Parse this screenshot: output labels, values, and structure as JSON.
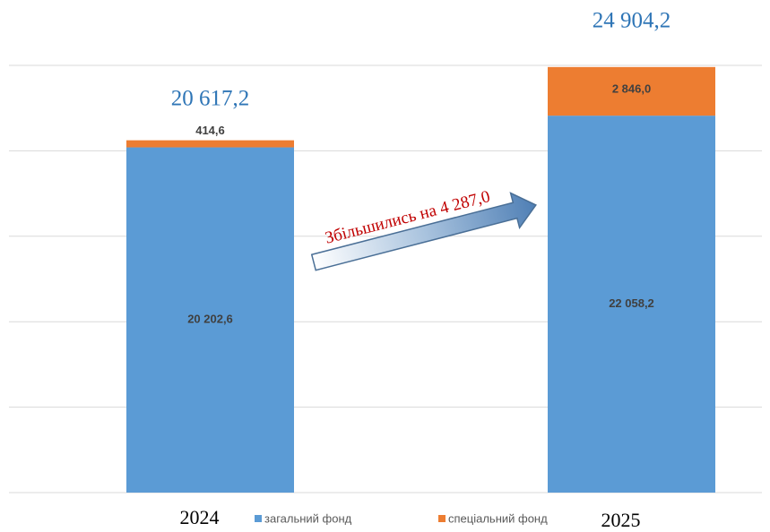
{
  "chart_data": {
    "type": "stacked_bar",
    "categories": [
      "2024",
      "2025"
    ],
    "series": [
      {
        "name": "загальний фонд",
        "color": "#5b9bd5",
        "values": [
          20202.6,
          22058.2
        ],
        "value_labels": [
          "20 202,6",
          "22 058,2"
        ]
      },
      {
        "name": "спеціальний фонд",
        "color": "#ed7d31",
        "values": [
          414.6,
          2846.0
        ],
        "value_labels": [
          "414,6",
          "2 846,0"
        ]
      }
    ],
    "totals": [
      20617.2,
      24904.2
    ],
    "total_labels": [
      "20 617,2",
      "24 904,2"
    ],
    "annotation": "Збільшились на 4 287,0",
    "ylim": [
      0,
      25000
    ],
    "yticks": [
      0,
      5000,
      10000,
      15000,
      20000,
      25000
    ],
    "grid": true,
    "legend": "bottom"
  }
}
